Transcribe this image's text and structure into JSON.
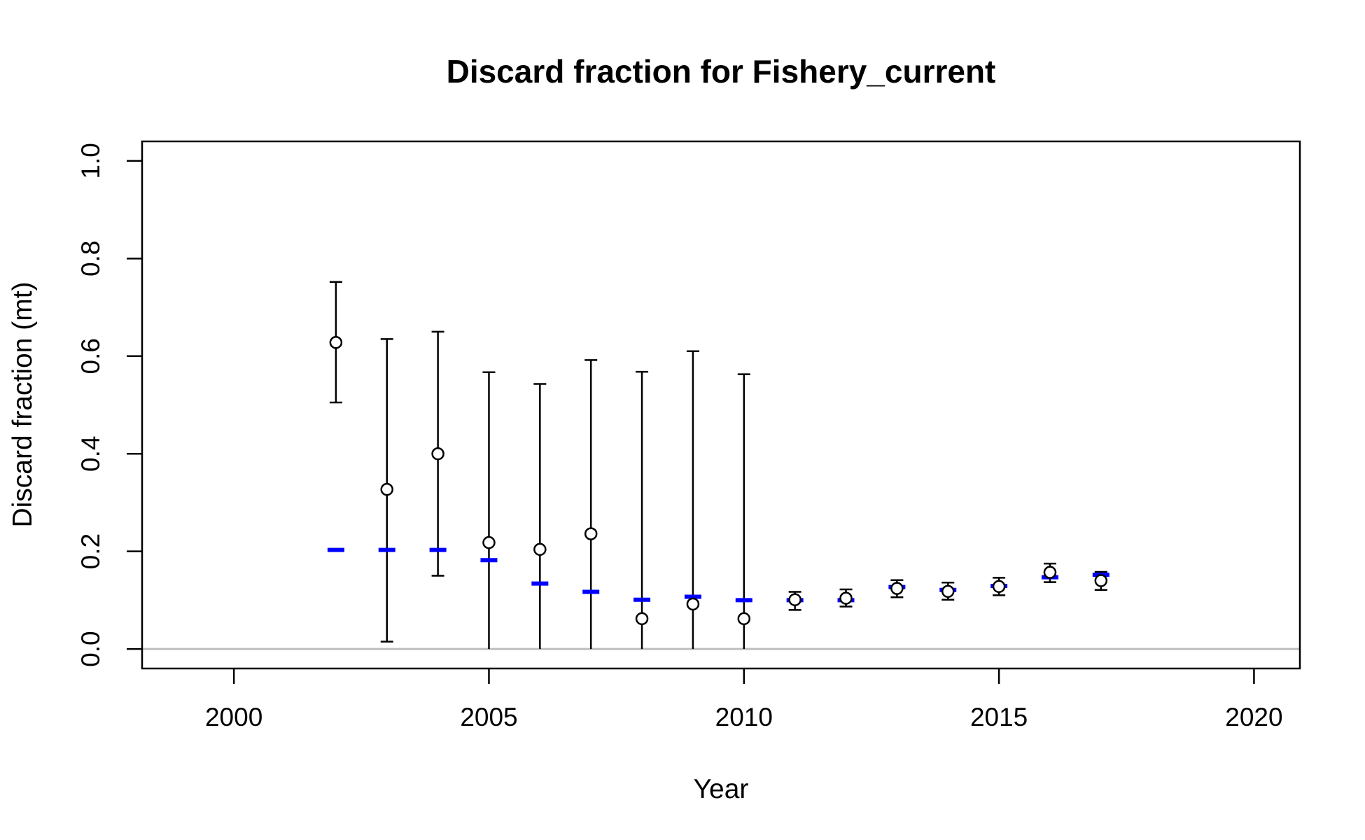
{
  "chart_data": {
    "type": "scatter",
    "title": "Discard fraction for Fishery_current",
    "xlabel": "Year",
    "ylabel": "Discard fraction (mt)",
    "xlim": [
      1998.2,
      2020.9
    ],
    "ylim": [
      -0.04,
      1.04
    ],
    "x_ticks": [
      "2000",
      "2005",
      "2010",
      "2015",
      "2020"
    ],
    "y_ticks": [
      "0.0",
      "0.2",
      "0.4",
      "0.6",
      "0.8",
      "1.0"
    ],
    "reference_line_y": 0,
    "colors": {
      "observed": "#000000",
      "expected": "#0000ff",
      "reference_line": "#bebebe"
    },
    "series": [
      {
        "marker": "open-circle-with-interval",
        "points": [
          {
            "x": 2002,
            "y": 0.628,
            "lo": 0.505,
            "hi": 0.752
          },
          {
            "x": 2003,
            "y": 0.327,
            "lo": 0.015,
            "hi": 0.635
          },
          {
            "x": 2004,
            "y": 0.4,
            "lo": 0.15,
            "hi": 0.65
          },
          {
            "x": 2005,
            "y": 0.218,
            "lo": 0.0,
            "hi": 0.567
          },
          {
            "x": 2006,
            "y": 0.204,
            "lo": 0.0,
            "hi": 0.543
          },
          {
            "x": 2007,
            "y": 0.236,
            "lo": 0.0,
            "hi": 0.592
          },
          {
            "x": 2008,
            "y": 0.062,
            "lo": 0.0,
            "hi": 0.568
          },
          {
            "x": 2009,
            "y": 0.092,
            "lo": 0.0,
            "hi": 0.61
          },
          {
            "x": 2010,
            "y": 0.062,
            "lo": 0.0,
            "hi": 0.563
          },
          {
            "x": 2011,
            "y": 0.101,
            "lo": 0.08,
            "hi": 0.117
          },
          {
            "x": 2012,
            "y": 0.104,
            "lo": 0.087,
            "hi": 0.122
          },
          {
            "x": 2013,
            "y": 0.124,
            "lo": 0.106,
            "hi": 0.141
          },
          {
            "x": 2014,
            "y": 0.118,
            "lo": 0.101,
            "hi": 0.136
          },
          {
            "x": 2015,
            "y": 0.128,
            "lo": 0.11,
            "hi": 0.146
          },
          {
            "x": 2016,
            "y": 0.157,
            "lo": 0.137,
            "hi": 0.175
          },
          {
            "x": 2017,
            "y": 0.14,
            "lo": 0.121,
            "hi": 0.158
          }
        ]
      },
      {
        "marker": "blue-dash",
        "points": [
          {
            "x": 2002,
            "y": 0.203
          },
          {
            "x": 2003,
            "y": 0.203
          },
          {
            "x": 2004,
            "y": 0.203
          },
          {
            "x": 2005,
            "y": 0.182
          },
          {
            "x": 2006,
            "y": 0.134
          },
          {
            "x": 2007,
            "y": 0.117
          },
          {
            "x": 2008,
            "y": 0.101
          },
          {
            "x": 2009,
            "y": 0.107
          },
          {
            "x": 2010,
            "y": 0.1
          },
          {
            "x": 2011,
            "y": 0.1
          },
          {
            "x": 2012,
            "y": 0.1
          },
          {
            "x": 2013,
            "y": 0.127
          },
          {
            "x": 2014,
            "y": 0.121
          },
          {
            "x": 2015,
            "y": 0.129
          },
          {
            "x": 2016,
            "y": 0.147
          },
          {
            "x": 2017,
            "y": 0.152
          }
        ]
      }
    ]
  }
}
